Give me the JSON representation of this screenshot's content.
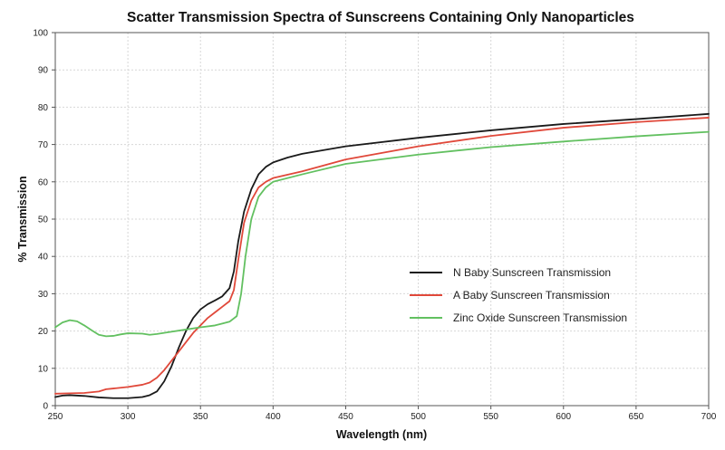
{
  "chart_data": {
    "type": "line",
    "title": "Scatter Transmission Spectra of Sunscreens Containing Only Nanoparticles",
    "xlabel": "Wavelength (nm)",
    "ylabel": "% Transmission",
    "xlim": [
      250,
      700
    ],
    "ylim": [
      0,
      100
    ],
    "xticks": [
      "250",
      "300",
      "350",
      "400",
      "450",
      "500",
      "550",
      "600",
      "650",
      "700"
    ],
    "yticks": [
      "0",
      "10",
      "20",
      "30",
      "40",
      "50",
      "60",
      "70",
      "80",
      "90",
      "100"
    ],
    "grid": true,
    "legend_position": "center-right",
    "series": [
      {
        "name": "N Baby Sunscreen Transmission",
        "color": "#1a1a1a",
        "points": [
          [
            250,
            2.3
          ],
          [
            255,
            2.7
          ],
          [
            260,
            2.8
          ],
          [
            270,
            2.6
          ],
          [
            280,
            2.2
          ],
          [
            290,
            2.0
          ],
          [
            300,
            2.0
          ],
          [
            310,
            2.3
          ],
          [
            315,
            2.8
          ],
          [
            320,
            3.8
          ],
          [
            325,
            6.5
          ],
          [
            330,
            10.5
          ],
          [
            335,
            15.5
          ],
          [
            340,
            20
          ],
          [
            345,
            23.5
          ],
          [
            350,
            25.8
          ],
          [
            355,
            27.2
          ],
          [
            360,
            28.2
          ],
          [
            365,
            29.3
          ],
          [
            370,
            31.5
          ],
          [
            373,
            36
          ],
          [
            376,
            44
          ],
          [
            380,
            52
          ],
          [
            385,
            58
          ],
          [
            390,
            62
          ],
          [
            395,
            64
          ],
          [
            400,
            65.2
          ],
          [
            410,
            66.5
          ],
          [
            420,
            67.5
          ],
          [
            450,
            69.5
          ],
          [
            500,
            71.8
          ],
          [
            550,
            73.8
          ],
          [
            600,
            75.5
          ],
          [
            650,
            76.8
          ],
          [
            700,
            78.2
          ]
        ]
      },
      {
        "name": "A Baby Sunscreen Transmission",
        "color": "#e0483a",
        "points": [
          [
            250,
            3.2
          ],
          [
            260,
            3.3
          ],
          [
            270,
            3.4
          ],
          [
            280,
            3.8
          ],
          [
            285,
            4.4
          ],
          [
            290,
            4.6
          ],
          [
            300,
            5.0
          ],
          [
            310,
            5.6
          ],
          [
            315,
            6.2
          ],
          [
            320,
            7.5
          ],
          [
            325,
            9.5
          ],
          [
            330,
            12
          ],
          [
            335,
            14.5
          ],
          [
            340,
            17
          ],
          [
            345,
            19.5
          ],
          [
            350,
            21.5
          ],
          [
            355,
            23.5
          ],
          [
            360,
            25
          ],
          [
            365,
            26.5
          ],
          [
            370,
            28
          ],
          [
            373,
            31
          ],
          [
            376,
            39
          ],
          [
            380,
            49
          ],
          [
            385,
            55
          ],
          [
            390,
            58.5
          ],
          [
            395,
            60
          ],
          [
            400,
            61
          ],
          [
            420,
            62.8
          ],
          [
            450,
            66
          ],
          [
            500,
            69.5
          ],
          [
            550,
            72.3
          ],
          [
            600,
            74.5
          ],
          [
            650,
            76
          ],
          [
            700,
            77.2
          ]
        ]
      },
      {
        "name": "Zinc Oxide Sunscreen Transmission",
        "color": "#62c060",
        "points": [
          [
            250,
            21
          ],
          [
            255,
            22.3
          ],
          [
            260,
            22.9
          ],
          [
            265,
            22.6
          ],
          [
            270,
            21.5
          ],
          [
            275,
            20.2
          ],
          [
            280,
            19
          ],
          [
            285,
            18.6
          ],
          [
            290,
            18.7
          ],
          [
            295,
            19.1
          ],
          [
            300,
            19.4
          ],
          [
            310,
            19.3
          ],
          [
            315,
            19.0
          ],
          [
            320,
            19.2
          ],
          [
            330,
            19.8
          ],
          [
            340,
            20.4
          ],
          [
            350,
            21
          ],
          [
            360,
            21.5
          ],
          [
            365,
            22
          ],
          [
            370,
            22.5
          ],
          [
            375,
            24
          ],
          [
            378,
            30
          ],
          [
            381,
            40
          ],
          [
            385,
            50
          ],
          [
            390,
            56
          ],
          [
            395,
            58.5
          ],
          [
            400,
            60
          ],
          [
            420,
            62
          ],
          [
            450,
            64.8
          ],
          [
            500,
            67.3
          ],
          [
            550,
            69.3
          ],
          [
            600,
            70.8
          ],
          [
            650,
            72.2
          ],
          [
            700,
            73.4
          ]
        ]
      }
    ]
  }
}
